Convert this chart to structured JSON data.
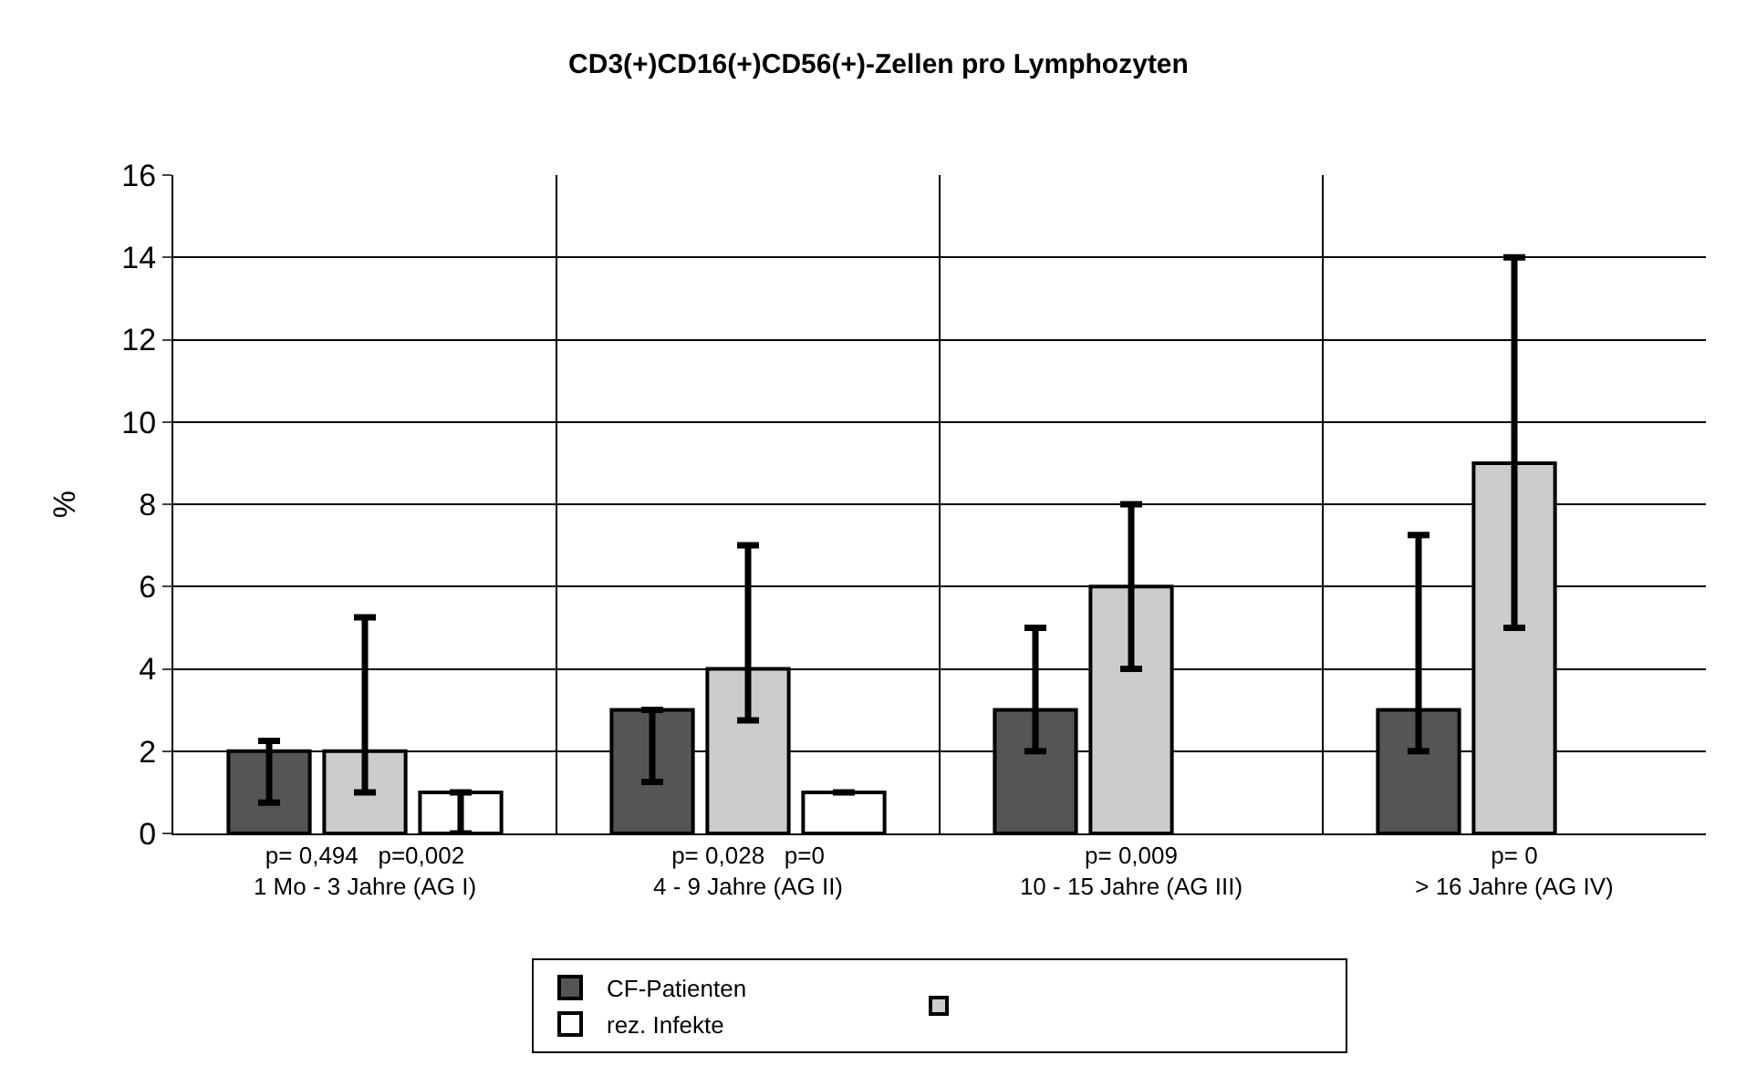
{
  "chart_data": {
    "type": "bar",
    "title": "CD3(+)CD16(+)CD56(+)-Zellen pro Lymphozyten",
    "ylabel": "%",
    "categories": [
      "p= 0,494   p=0,002\n1 Mo - 3 Jahre (AG I)",
      "p= 0,028   p=0\n4 - 9 Jahre (AG II)",
      "p= 0,009\n10 - 15 Jahre (AG III)",
      "p= 0\n> 16 Jahre (AG IV)"
    ],
    "series": [
      {
        "name": "CF-Patienten",
        "color": "#555555",
        "values": [
          2,
          3,
          3,
          3
        ],
        "errors": [
          [
            0.75,
            2.25
          ],
          [
            1.25,
            3
          ],
          [
            2,
            5
          ],
          [
            2,
            7.25
          ]
        ]
      },
      {
        "color": "#cccccc",
        "values": [
          2,
          4,
          6,
          9
        ],
        "errors": [
          [
            1,
            5.25
          ],
          [
            2.75,
            7
          ],
          [
            4,
            8
          ],
          [
            5,
            14
          ]
        ]
      },
      {
        "name": "rez. Infekte",
        "color": "#ffffff",
        "values": [
          1,
          1,
          null,
          null
        ],
        "errors": [
          [
            0,
            1
          ],
          [
            1,
            1
          ],
          null,
          null
        ]
      }
    ],
    "ylim": [
      0,
      16
    ],
    "yticks": [
      0,
      2,
      4,
      6,
      8,
      10,
      12,
      14,
      16
    ],
    "grid": true,
    "legend": "bottom"
  }
}
